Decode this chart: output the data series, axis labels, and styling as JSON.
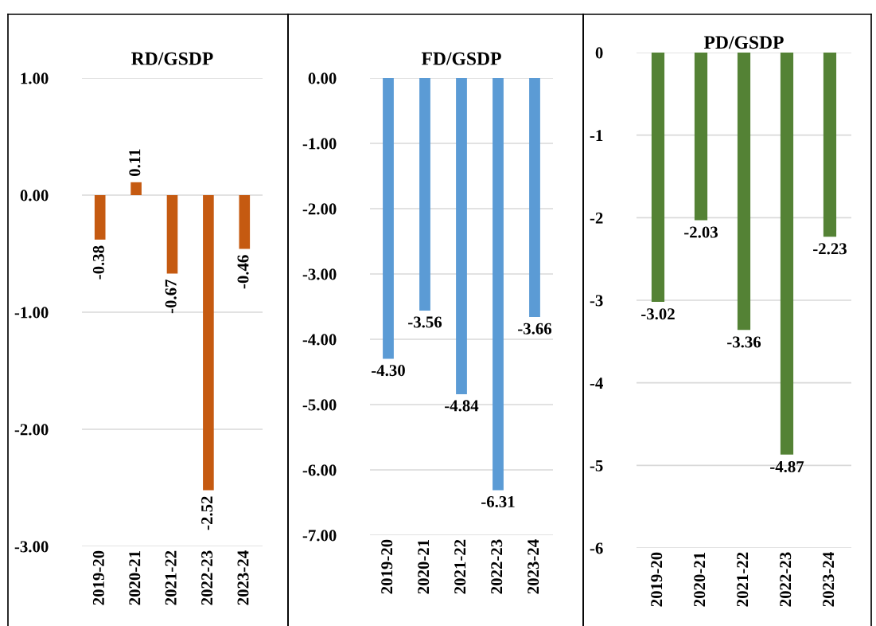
{
  "chart_data": [
    {
      "type": "bar",
      "title": "RD/GSDP",
      "categories": [
        "2019-20",
        "2020-21",
        "2021-22",
        "2022-23",
        "2023-24"
      ],
      "values": [
        -0.38,
        0.11,
        -0.67,
        -2.52,
        -0.46
      ],
      "value_labels": [
        "-0.38",
        "0.11",
        "-0.67",
        "-2.52",
        "-0.46"
      ],
      "color": "#c55a11",
      "ylim": [
        -3,
        1
      ],
      "yticks": [
        {
          "value": 1,
          "label": "1.00"
        },
        {
          "value": 0,
          "label": "0.00"
        },
        {
          "value": -1,
          "label": "-1.00"
        },
        {
          "value": -2,
          "label": "-2.00"
        },
        {
          "value": -3,
          "label": "-3.00"
        }
      ],
      "grid": "y"
    },
    {
      "type": "bar",
      "title": "FD/GSDP",
      "categories": [
        "2019-20",
        "2020-21",
        "2021-22",
        "2022-23",
        "2023-24"
      ],
      "values": [
        -4.3,
        -3.56,
        -4.84,
        -6.31,
        -3.66
      ],
      "value_labels": [
        "-4.30",
        "-3.56",
        "-4.84",
        "-6.31",
        "-3.66"
      ],
      "color": "#5b9bd5",
      "ylim": [
        -7,
        0
      ],
      "yticks": [
        {
          "value": 0,
          "label": "0.00"
        },
        {
          "value": -1,
          "label": "-1.00"
        },
        {
          "value": -2,
          "label": "-2.00"
        },
        {
          "value": -3,
          "label": "-3.00"
        },
        {
          "value": -4,
          "label": "-4.00"
        },
        {
          "value": -5,
          "label": "-5.00"
        },
        {
          "value": -6,
          "label": "-6.00"
        },
        {
          "value": -7,
          "label": "-7.00"
        }
      ],
      "grid": "y"
    },
    {
      "type": "bar",
      "title": "PD/GSDP",
      "categories": [
        "2019-20",
        "2020-21",
        "2021-22",
        "2022-23",
        "2023-24"
      ],
      "values": [
        -3.02,
        -2.03,
        -3.36,
        -4.87,
        -2.23
      ],
      "value_labels": [
        "-3.02",
        "-2.03",
        "-3.36",
        "-4.87",
        "-2.23"
      ],
      "color": "#548235",
      "ylim": [
        -6,
        0
      ],
      "yticks": [
        0,
        -1,
        -2,
        -3,
        -4,
        -5,
        -6
      ],
      "grid": "y"
    }
  ]
}
